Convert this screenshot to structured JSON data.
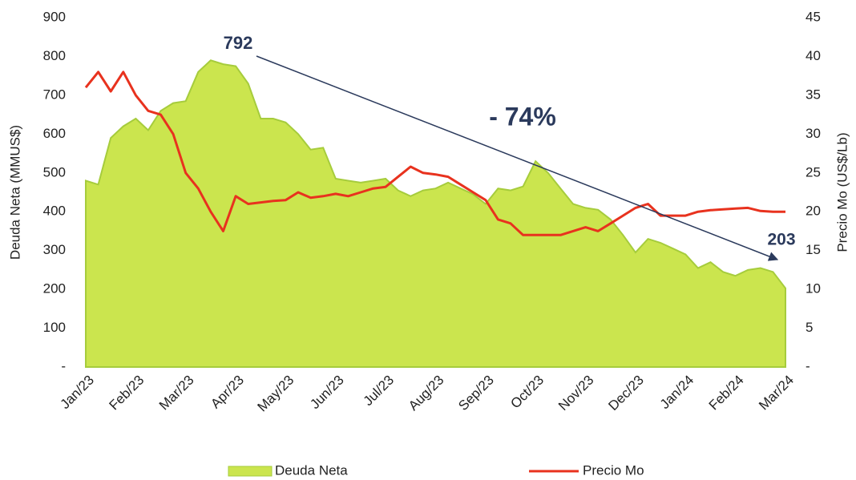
{
  "chart_data": {
    "type": "area_line",
    "ylabel": "Deuda Neta (MMUS$)",
    "y2label": "Precio Mo (US$/Lb)",
    "categories": [
      "Jan/23",
      null,
      null,
      null,
      "Feb/23",
      null,
      null,
      null,
      "Mar/23",
      null,
      null,
      null,
      "Apr/23",
      null,
      null,
      null,
      "May/23",
      null,
      null,
      null,
      "Jun/23",
      null,
      null,
      null,
      "Jul/23",
      null,
      null,
      null,
      "Aug/23",
      null,
      null,
      null,
      "Sep/23",
      null,
      null,
      null,
      "Oct/23",
      null,
      null,
      null,
      "Nov/23",
      null,
      null,
      null,
      "Dec/23",
      null,
      null,
      null,
      "Jan/24",
      null,
      null,
      null,
      "Feb/24",
      null,
      null,
      null,
      "Mar/24"
    ],
    "series": [
      {
        "name": "Deuda Neta",
        "color": "#cbe54e",
        "kind": "area",
        "values": [
          480,
          470,
          590,
          620,
          640,
          610,
          660,
          680,
          685,
          760,
          790,
          780,
          775,
          730,
          640,
          640,
          630,
          600,
          560,
          565,
          485,
          480,
          475,
          480,
          485,
          455,
          440,
          455,
          460,
          475,
          460,
          445,
          420,
          460,
          455,
          465,
          530,
          500,
          460,
          420,
          410,
          405,
          380,
          340,
          295,
          330,
          320,
          305,
          290,
          255,
          270,
          245,
          235,
          250,
          255,
          245,
          203
        ]
      },
      {
        "name": "Precio Mo",
        "color": "#e8321e",
        "kind": "line",
        "axis": "y2",
        "values": [
          36,
          38,
          35.5,
          38,
          35,
          33,
          32.5,
          30,
          25,
          23,
          20,
          17.5,
          22,
          21,
          21.2,
          21.4,
          21.5,
          22.5,
          21.8,
          22,
          22.3,
          22,
          22.5,
          23,
          23.2,
          24.5,
          25.8,
          25,
          24.8,
          24.5,
          23.5,
          22.5,
          21.5,
          19,
          18.5,
          17,
          17,
          17,
          17,
          17.5,
          18,
          17.5,
          18.5,
          19.5,
          20.5,
          21,
          19.5,
          19.5,
          19.5,
          20,
          20.2,
          20.3,
          20.4,
          20.5,
          20.1,
          20,
          20
        ]
      }
    ],
    "ylim": [
      0,
      900
    ],
    "yticks": [
      {
        "value": 0,
        "label": "-"
      },
      100,
      200,
      300,
      400,
      500,
      600,
      700,
      800,
      900
    ],
    "y2lim": [
      0,
      45
    ],
    "y2ticks": [
      {
        "value": 0,
        "label": "-"
      },
      5,
      10,
      15,
      20,
      25,
      30,
      35,
      40,
      45
    ],
    "annotations": [
      {
        "text": "792"
      },
      {
        "text": "- 74%"
      },
      {
        "text": "203"
      }
    ],
    "legend": "bottom"
  }
}
